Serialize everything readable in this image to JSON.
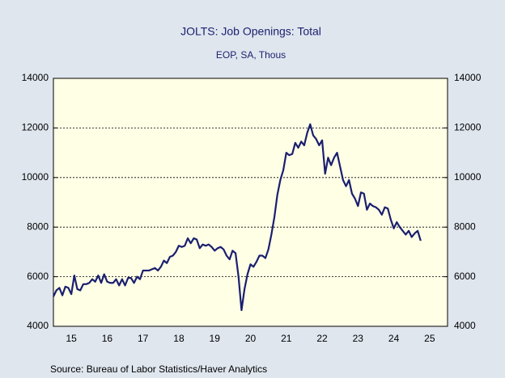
{
  "chart_data": {
    "type": "line",
    "title": "JOLTS: Job Openings: Total",
    "subtitle": "EOP, SA, Thous",
    "source": "Source:  Bureau of Labor Statistics/Haver Analytics",
    "x": [
      0,
      1,
      2,
      3,
      4,
      5,
      6,
      7,
      8,
      9,
      10,
      11,
      12,
      13,
      14,
      15,
      16,
      17,
      18,
      19,
      20,
      21,
      22,
      23,
      24,
      25,
      26,
      27,
      28,
      29,
      30,
      31,
      32,
      33,
      34,
      35,
      36,
      37,
      38,
      39,
      40,
      41,
      42,
      43,
      44,
      45,
      46,
      47,
      48,
      49,
      50,
      51,
      52,
      53,
      54,
      55,
      56,
      57,
      58,
      59,
      60,
      61,
      62,
      63,
      64,
      65,
      66,
      67,
      68,
      69,
      70,
      71,
      72,
      73,
      74,
      75,
      76,
      77,
      78,
      79,
      80,
      81,
      82,
      83,
      84,
      85,
      86,
      87,
      88,
      89,
      90,
      91,
      92,
      93,
      94,
      95,
      96,
      97,
      98,
      99,
      100,
      101,
      102,
      103,
      104,
      105,
      106,
      107,
      108,
      109,
      110,
      111,
      112,
      113,
      114,
      115,
      116,
      117,
      118,
      119,
      120,
      121,
      122,
      123
    ],
    "series": [
      {
        "name": "Job Openings",
        "color": "#1a1f6e",
        "values": [
          5200,
          5450,
          5550,
          5250,
          5600,
          5550,
          5300,
          6050,
          5500,
          5450,
          5700,
          5700,
          5750,
          5900,
          5800,
          6050,
          5750,
          6100,
          5800,
          5750,
          5750,
          5900,
          5650,
          5900,
          5650,
          5950,
          5950,
          5750,
          6000,
          5900,
          6250,
          6250,
          6250,
          6300,
          6350,
          6250,
          6400,
          6650,
          6550,
          6800,
          6850,
          7000,
          7250,
          7200,
          7250,
          7550,
          7350,
          7550,
          7500,
          7150,
          7300,
          7250,
          7300,
          7200,
          7050,
          7150,
          7200,
          7100,
          6850,
          6700,
          7050,
          6950,
          6000,
          4650,
          5500,
          6100,
          6500,
          6400,
          6600,
          6850,
          6850,
          6750,
          7100,
          7700,
          8400,
          9300,
          9900,
          10300,
          11000,
          10900,
          10950,
          11400,
          11200,
          11450,
          11300,
          11800,
          12150,
          11700,
          11550,
          11300,
          11500,
          10150,
          10800,
          10500,
          10800,
          11000,
          10450,
          9900,
          9650,
          9900,
          9350,
          9150,
          8850,
          9400,
          9350,
          8700,
          8950,
          8850,
          8800,
          8700,
          8500,
          8800,
          8750,
          8300,
          7950,
          8200,
          8000,
          7850,
          7700,
          7850,
          7600,
          7750,
          7850,
          7450
        ]
      }
    ],
    "xlim": [
      0,
      132
    ],
    "xticks": [
      {
        "value": 6,
        "label": "15"
      },
      {
        "value": 18,
        "label": "16"
      },
      {
        "value": 30,
        "label": "17"
      },
      {
        "value": 42,
        "label": "18"
      },
      {
        "value": 54,
        "label": "19"
      },
      {
        "value": 66,
        "label": "20"
      },
      {
        "value": 78,
        "label": "21"
      },
      {
        "value": 90,
        "label": "22"
      },
      {
        "value": 102,
        "label": "23"
      },
      {
        "value": 114,
        "label": "24"
      },
      {
        "value": 126,
        "label": "25"
      }
    ],
    "ylim": [
      4000,
      14000
    ],
    "yticks": [
      4000,
      6000,
      8000,
      10000,
      12000,
      14000
    ],
    "y2lim": [
      4000,
      14000
    ],
    "y2ticks": [
      4000,
      6000,
      8000,
      10000,
      12000,
      14000
    ],
    "grid": true
  }
}
